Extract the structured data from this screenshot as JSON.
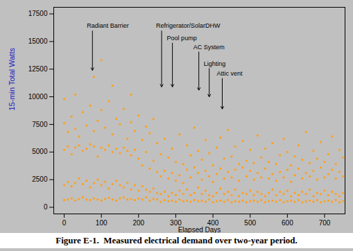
{
  "chart_data": {
    "type": "scatter",
    "caption": "Figure E-1.  Measured electrical demand over two-year period.",
    "x_label": "Elapsed Days",
    "y_label": "15-min Total Watts",
    "xlim": [
      -28,
      755
    ],
    "ylim": [
      -600,
      18100
    ],
    "xticks": [
      0,
      100,
      200,
      300,
      400,
      500,
      600,
      700
    ],
    "yticks": [
      0,
      2500,
      5000,
      7500,
      10000,
      12500,
      15000,
      17500
    ],
    "color": "#ffa020",
    "marker": "square",
    "x": [
      0,
      10,
      20,
      30,
      40,
      50,
      60,
      70,
      80,
      90,
      100,
      110,
      120,
      130,
      140,
      150,
      160,
      170,
      180,
      190,
      200,
      210,
      220,
      230,
      240,
      250,
      260,
      270,
      280,
      290,
      300,
      310,
      320,
      330,
      340,
      350,
      360,
      370,
      380,
      390,
      400,
      410,
      420,
      430,
      440,
      450,
      460,
      470,
      480,
      490,
      500,
      510,
      520,
      530,
      540,
      550,
      560,
      570,
      580,
      590,
      600,
      610,
      620,
      630,
      640,
      650,
      660,
      670,
      680,
      690,
      700,
      710,
      720,
      730,
      740,
      750
    ],
    "values": [
      [
        650,
        2000,
        5200,
        7600,
        9800
      ],
      [
        700,
        2300,
        5500,
        6800
      ],
      [
        800,
        1900,
        4800,
        8200
      ],
      [
        600,
        2200,
        5400,
        7100,
        10200
      ],
      [
        750,
        2600,
        5600,
        6400
      ],
      [
        900,
        2100,
        5100,
        8600
      ],
      [
        700,
        2400,
        5300,
        7400
      ],
      [
        650,
        1800,
        5700,
        9200
      ],
      [
        800,
        2200,
        5500,
        6900,
        11800
      ],
      [
        700,
        2500,
        4600,
        7800
      ],
      [
        600,
        2000,
        5400,
        8800,
        13300
      ],
      [
        750,
        2300,
        5200,
        7200
      ],
      [
        850,
        1700,
        5600,
        9600
      ],
      [
        700,
        2100,
        5000,
        6600,
        11000
      ],
      [
        600,
        2400,
        5300,
        8000
      ],
      [
        800,
        2000,
        4900,
        7500
      ],
      [
        900,
        1800,
        5400,
        8900
      ],
      [
        700,
        2200,
        5100,
        6200
      ],
      [
        750,
        1600,
        4700,
        7700,
        10200
      ],
      [
        650,
        2000,
        5200,
        6900
      ],
      [
        800,
        1500,
        4400,
        8300
      ],
      [
        700,
        1900,
        3800,
        6100
      ],
      [
        900,
        1600,
        5000,
        7300
      ],
      [
        600,
        1400,
        3500,
        6700
      ],
      [
        750,
        1700,
        4200,
        8000
      ],
      [
        700,
        1300,
        3200,
        5800
      ],
      [
        500,
        1200,
        2800,
        4800
      ],
      [
        650,
        1400,
        3300,
        6200
      ],
      [
        550,
        1000,
        2600,
        4500
      ],
      [
        600,
        1300,
        3100,
        5300
      ],
      [
        500,
        1100,
        2400,
        4100
      ],
      [
        700,
        1500,
        2900,
        6600
      ],
      [
        550,
        1200,
        2200,
        3900
      ],
      [
        600,
        1600,
        3400,
        5600
      ],
      [
        500,
        1100,
        2700,
        4700
      ],
      [
        650,
        1300,
        3600,
        7200
      ],
      [
        550,
        1800,
        3100,
        5100
      ],
      [
        600,
        1200,
        2500,
        4300
      ],
      [
        500,
        1500,
        3300,
        6100
      ],
      [
        700,
        1100,
        2800,
        4900
      ],
      [
        450,
        1000,
        2300,
        3800
      ],
      [
        550,
        1300,
        3000,
        5400
      ],
      [
        600,
        1700,
        3500,
        6300
      ],
      [
        500,
        1200,
        2600,
        4400
      ],
      [
        650,
        1400,
        3200,
        7000
      ],
      [
        450,
        1100,
        2700,
        4600
      ],
      [
        550,
        1600,
        3400,
        5500
      ],
      [
        500,
        1000,
        2400,
        3900
      ],
      [
        600,
        1300,
        3600,
        6000
      ],
      [
        450,
        1200,
        2800,
        4200
      ],
      [
        550,
        1500,
        3300,
        5200
      ],
      [
        600,
        1100,
        2500,
        4000
      ],
      [
        500,
        1400,
        3100,
        6500
      ],
      [
        650,
        1200,
        2700,
        4500
      ],
      [
        450,
        1000,
        3500,
        5300
      ],
      [
        550,
        1300,
        2600,
        4100
      ],
      [
        600,
        1600,
        3000,
        5800
      ],
      [
        500,
        1100,
        2400,
        3900
      ],
      [
        650,
        1400,
        3200,
        4700
      ],
      [
        450,
        1200,
        2700,
        6200
      ],
      [
        550,
        1500,
        3400,
        5000
      ],
      [
        600,
        1000,
        2300,
        3800
      ],
      [
        500,
        1300,
        2900,
        4600
      ],
      [
        650,
        1100,
        3500,
        5600
      ],
      [
        450,
        1400,
        2600,
        4300
      ],
      [
        550,
        1200,
        3100,
        6800
      ],
      [
        600,
        1600,
        2800,
        4000
      ],
      [
        500,
        1000,
        3300,
        5100
      ],
      [
        650,
        1300,
        2500,
        4400
      ],
      [
        450,
        1200,
        3600,
        5900
      ],
      [
        550,
        1500,
        2700,
        4100
      ],
      [
        600,
        1100,
        3000,
        4800
      ],
      [
        500,
        1400,
        3400,
        6400
      ],
      [
        650,
        1200,
        2600,
        3900
      ],
      [
        450,
        1000,
        3200,
        5200
      ],
      [
        550,
        1300,
        2800,
        4500
      ]
    ],
    "annotations": [
      {
        "text": "Radiant Barrier",
        "x": 76,
        "y": 12400,
        "label_y": 16400
      },
      {
        "text": "Refrigerator/SolarDHW",
        "x": 262,
        "y": 10900,
        "label_y": 16400
      },
      {
        "text": "Pool pump",
        "x": 291,
        "y": 10900,
        "label_y": 15300
      },
      {
        "text": "AC System",
        "x": 362,
        "y": 10600,
        "label_y": 14500
      },
      {
        "text": "Lighting",
        "x": 390,
        "y": 10000,
        "label_y": 13000
      },
      {
        "text": "Attic vent",
        "x": 425,
        "y": 8900,
        "label_y": 12100
      }
    ]
  }
}
